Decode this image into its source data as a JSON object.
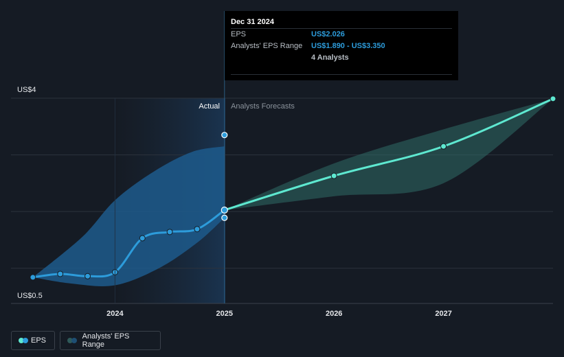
{
  "chart_data": {
    "type": "line",
    "y_axis": {
      "top_label": "US$4",
      "bottom_label": "US$0.5",
      "ylim": [
        0.5,
        4.0
      ]
    },
    "x_ticks": [
      {
        "label": "2024",
        "x": 2024.0
      },
      {
        "label": "2025",
        "x": 2025.0
      },
      {
        "label": "2026",
        "x": 2026.0
      },
      {
        "label": "2027",
        "x": 2027.0
      }
    ],
    "xlim": [
      2023.0,
      2028.0
    ],
    "regions": {
      "actual_label": "Actual",
      "forecast_label": "Analysts Forecasts",
      "divider_x": 2025.0
    },
    "series": [
      {
        "name": "EPS",
        "color": "#2d9cdb",
        "points": [
          {
            "x": 2023.25,
            "y": 0.84
          },
          {
            "x": 2023.5,
            "y": 0.9
          },
          {
            "x": 2023.75,
            "y": 0.86
          },
          {
            "x": 2024.0,
            "y": 0.93
          },
          {
            "x": 2024.25,
            "y": 1.53
          },
          {
            "x": 2024.5,
            "y": 1.64
          },
          {
            "x": 2024.75,
            "y": 1.69
          },
          {
            "x": 2025.0,
            "y": 2.026
          }
        ]
      },
      {
        "name": "Analyst Forecast",
        "color": "#5ee8d0",
        "points": [
          {
            "x": 2025.0,
            "y": 2.026
          },
          {
            "x": 2026.0,
            "y": 2.63
          },
          {
            "x": 2027.0,
            "y": 3.15
          },
          {
            "x": 2028.0,
            "y": 3.99
          }
        ]
      }
    ],
    "actual_band": {
      "upper": [
        {
          "x": 2023.25,
          "y": 0.84
        },
        {
          "x": 2023.7,
          "y": 1.55
        },
        {
          "x": 2024.0,
          "y": 2.2
        },
        {
          "x": 2024.35,
          "y": 2.7
        },
        {
          "x": 2024.7,
          "y": 3.05
        },
        {
          "x": 2025.0,
          "y": 3.15
        }
      ],
      "lower": [
        {
          "x": 2023.25,
          "y": 0.84
        },
        {
          "x": 2023.6,
          "y": 0.73
        },
        {
          "x": 2024.0,
          "y": 0.7
        },
        {
          "x": 2024.4,
          "y": 1.0
        },
        {
          "x": 2024.75,
          "y": 1.45
        },
        {
          "x": 2025.0,
          "y": 1.89
        }
      ]
    },
    "forecast_band": {
      "upper": [
        {
          "x": 2025.0,
          "y": 2.026
        },
        {
          "x": 2026.0,
          "y": 2.85
        },
        {
          "x": 2027.0,
          "y": 3.45
        },
        {
          "x": 2028.0,
          "y": 3.99
        }
      ],
      "lower": [
        {
          "x": 2025.0,
          "y": 2.026
        },
        {
          "x": 2026.0,
          "y": 2.27
        },
        {
          "x": 2027.0,
          "y": 2.5
        },
        {
          "x": 2028.0,
          "y": 3.99
        }
      ]
    },
    "range_markers": [
      {
        "x": 2025.0,
        "y": 3.35
      },
      {
        "x": 2025.0,
        "y": 1.89
      }
    ],
    "gridlines_y": [
      1.0,
      2.0,
      3.0,
      4.0
    ]
  },
  "tooltip": {
    "date": "Dec 31 2024",
    "eps_label": "EPS",
    "eps_value": "US$2.026",
    "range_label": "Analysts' EPS Range",
    "range_value": "US$1.890 - US$3.350",
    "analysts": "4 Analysts"
  },
  "legend": {
    "eps_label": "EPS",
    "range_label": "Analysts' EPS Range",
    "eps_colors": [
      "#5ee8d0",
      "#2d9cdb"
    ],
    "range_colors": [
      "#2f5a5a",
      "#1e4f74"
    ]
  }
}
